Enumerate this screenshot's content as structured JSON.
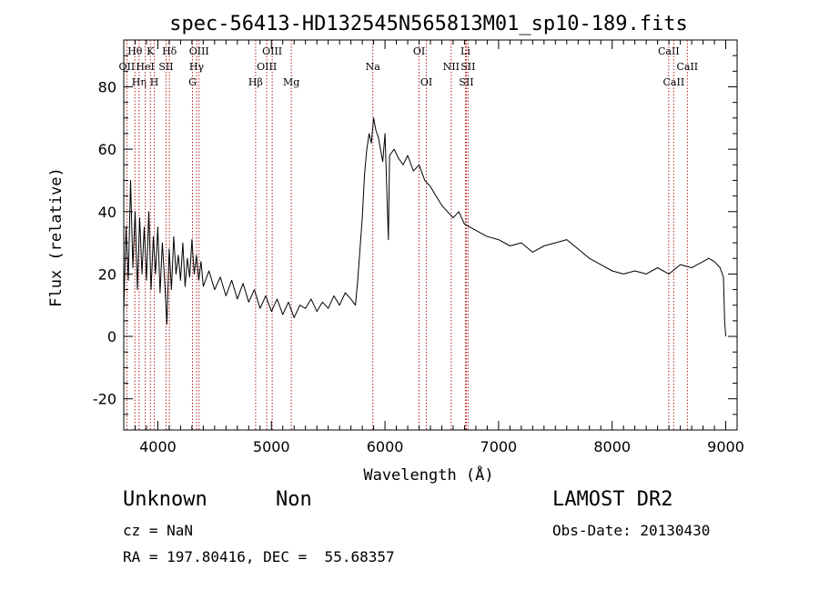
{
  "chart_data": {
    "type": "line",
    "title": "spec-56413-HD132545N565813M01_sp10-189.fits",
    "xlabel": "Wavelength (Å)",
    "ylabel": "Flux (relative)",
    "xlim": [
      3700,
      9100
    ],
    "ylim": [
      -30,
      95
    ],
    "x_ticks": [
      4000,
      5000,
      6000,
      7000,
      8000,
      9000
    ],
    "y_ticks": [
      -20,
      0,
      20,
      40,
      60,
      80
    ],
    "grid": false,
    "series": [
      {
        "points": [
          [
            3700,
            8
          ],
          [
            3720,
            35
          ],
          [
            3740,
            18
          ],
          [
            3760,
            50
          ],
          [
            3780,
            22
          ],
          [
            3800,
            40
          ],
          [
            3820,
            15
          ],
          [
            3840,
            38
          ],
          [
            3860,
            20
          ],
          [
            3880,
            35
          ],
          [
            3900,
            18
          ],
          [
            3920,
            40
          ],
          [
            3940,
            15
          ],
          [
            3960,
            32
          ],
          [
            3980,
            20
          ],
          [
            4000,
            35
          ],
          [
            4020,
            14
          ],
          [
            4040,
            30
          ],
          [
            4060,
            18
          ],
          [
            4080,
            4
          ],
          [
            4100,
            28
          ],
          [
            4120,
            15
          ],
          [
            4140,
            32
          ],
          [
            4160,
            20
          ],
          [
            4180,
            26
          ],
          [
            4200,
            18
          ],
          [
            4220,
            30
          ],
          [
            4240,
            16
          ],
          [
            4260,
            25
          ],
          [
            4280,
            19
          ],
          [
            4300,
            31
          ],
          [
            4320,
            20
          ],
          [
            4340,
            26
          ],
          [
            4360,
            18
          ],
          [
            4380,
            24
          ],
          [
            4400,
            16
          ],
          [
            4450,
            21
          ],
          [
            4500,
            15
          ],
          [
            4550,
            19
          ],
          [
            4600,
            13
          ],
          [
            4650,
            18
          ],
          [
            4700,
            12
          ],
          [
            4750,
            17
          ],
          [
            4800,
            11
          ],
          [
            4850,
            15
          ],
          [
            4900,
            9
          ],
          [
            4950,
            13
          ],
          [
            5000,
            8
          ],
          [
            5050,
            12
          ],
          [
            5100,
            7
          ],
          [
            5150,
            11
          ],
          [
            5200,
            6
          ],
          [
            5250,
            10
          ],
          [
            5300,
            9
          ],
          [
            5350,
            12
          ],
          [
            5400,
            8
          ],
          [
            5450,
            11
          ],
          [
            5500,
            9
          ],
          [
            5550,
            13
          ],
          [
            5600,
            10
          ],
          [
            5650,
            14
          ],
          [
            5700,
            12
          ],
          [
            5740,
            10
          ],
          [
            5760,
            18
          ],
          [
            5780,
            28
          ],
          [
            5800,
            38
          ],
          [
            5820,
            52
          ],
          [
            5840,
            60
          ],
          [
            5860,
            65
          ],
          [
            5880,
            62
          ],
          [
            5900,
            70
          ],
          [
            5920,
            66
          ],
          [
            5940,
            64
          ],
          [
            5960,
            60
          ],
          [
            5980,
            56
          ],
          [
            6000,
            65
          ],
          [
            6020,
            42
          ],
          [
            6030,
            31
          ],
          [
            6040,
            58
          ],
          [
            6080,
            60
          ],
          [
            6120,
            57
          ],
          [
            6160,
            55
          ],
          [
            6200,
            58
          ],
          [
            6250,
            53
          ],
          [
            6300,
            55
          ],
          [
            6350,
            50
          ],
          [
            6400,
            48
          ],
          [
            6450,
            45
          ],
          [
            6500,
            42
          ],
          [
            6550,
            40
          ],
          [
            6600,
            38
          ],
          [
            6650,
            40
          ],
          [
            6700,
            36
          ],
          [
            6750,
            35
          ],
          [
            6800,
            34
          ],
          [
            6850,
            33
          ],
          [
            6900,
            32
          ],
          [
            7000,
            31
          ],
          [
            7100,
            29
          ],
          [
            7200,
            30
          ],
          [
            7300,
            27
          ],
          [
            7400,
            29
          ],
          [
            7500,
            30
          ],
          [
            7600,
            31
          ],
          [
            7700,
            28
          ],
          [
            7800,
            25
          ],
          [
            7900,
            23
          ],
          [
            8000,
            21
          ],
          [
            8100,
            20
          ],
          [
            8200,
            21
          ],
          [
            8300,
            20
          ],
          [
            8400,
            22
          ],
          [
            8500,
            20
          ],
          [
            8600,
            23
          ],
          [
            8700,
            22
          ],
          [
            8800,
            24
          ],
          [
            8850,
            25
          ],
          [
            8900,
            24
          ],
          [
            8950,
            22
          ],
          [
            8980,
            19
          ],
          [
            8990,
            5
          ],
          [
            9000,
            0
          ]
        ]
      }
    ],
    "line_markers": [
      {
        "label": "Hθ",
        "x": 3798,
        "row": 0
      },
      {
        "label": "OII",
        "x": 3727,
        "row": 1
      },
      {
        "label": "Hη",
        "x": 3835,
        "row": 2
      },
      {
        "label": "K",
        "x": 3934,
        "row": 0
      },
      {
        "label": "HeI",
        "x": 3889,
        "row": 1
      },
      {
        "label": "H",
        "x": 3969,
        "row": 2
      },
      {
        "label": "Hδ",
        "x": 4102,
        "row": 0
      },
      {
        "label": "SII",
        "x": 4072,
        "row": 1
      },
      {
        "label": "G",
        "x": 4305,
        "row": 2
      },
      {
        "label": "OIII",
        "x": 4363,
        "row": 0
      },
      {
        "label": "Hγ",
        "x": 4341,
        "row": 1
      },
      {
        "label": "Hβ",
        "x": 4861,
        "row": 2
      },
      {
        "label": "OIII",
        "x": 5007,
        "row": 0
      },
      {
        "label": "OIII",
        "x": 4959,
        "row": 1
      },
      {
        "label": "Mg",
        "x": 5175,
        "row": 2
      },
      {
        "label": "Na",
        "x": 5893,
        "row": 1
      },
      {
        "label": "OI",
        "x": 6300,
        "row": 0
      },
      {
        "label": "OI",
        "x": 6364,
        "row": 2
      },
      {
        "label": "Li",
        "x": 6708,
        "row": 0
      },
      {
        "label": "NII",
        "x": 6583,
        "row": 1
      },
      {
        "label": "SII",
        "x": 6731,
        "row": 1
      },
      {
        "label": "SII",
        "x": 6716,
        "row": 2
      },
      {
        "label": "CaII",
        "x": 8498,
        "row": 0
      },
      {
        "label": "CaII",
        "x": 8662,
        "row": 1
      },
      {
        "label": "CaII",
        "x": 8542,
        "row": 2
      }
    ]
  },
  "info": {
    "object_class": "Unknown",
    "subclass": "Non",
    "survey": "LAMOST DR2",
    "cz": "cz = NaN",
    "obs_date": "Obs-Date: 20130430",
    "coords": "RA = 197.80416, DEC =  55.68357"
  },
  "colors": {
    "spectrum": "#000000",
    "line_marker": "#b22222",
    "axes": "#000000"
  }
}
